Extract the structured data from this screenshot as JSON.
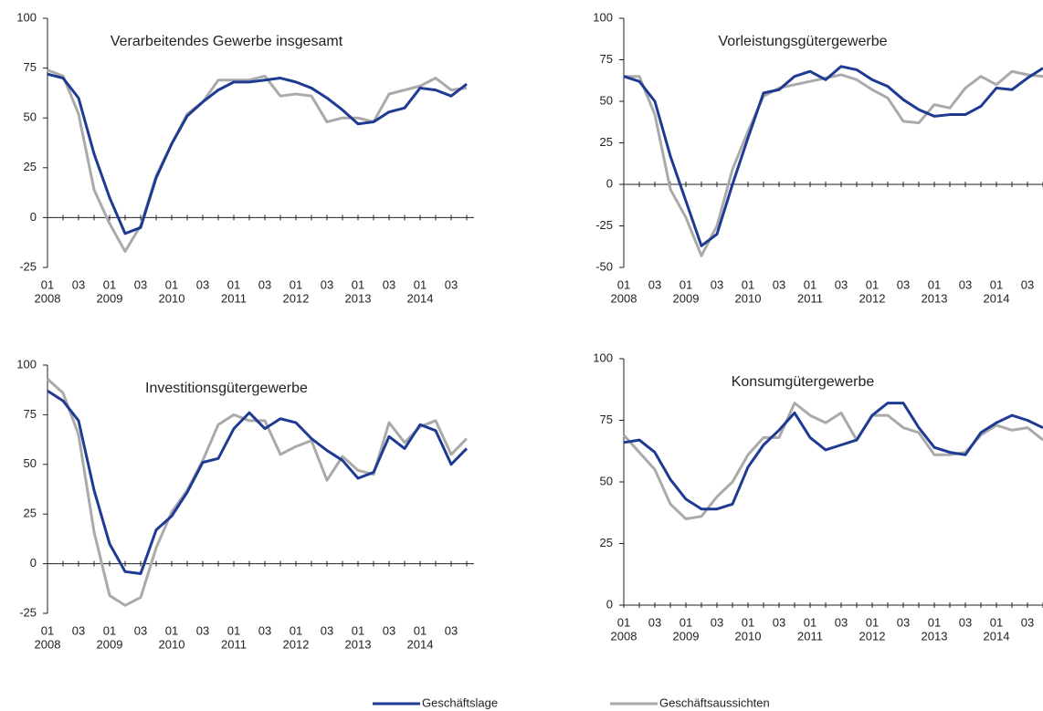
{
  "legend": [
    {
      "name": "Geschäftslage",
      "color": "#1f3a93"
    },
    {
      "name": "Geschäftsaussichten",
      "color": "#aaaaaa"
    }
  ],
  "chart_data": [
    {
      "type": "line",
      "title": "Verarbeitendes Gewerbe insgesamt",
      "categories": [
        "01",
        null,
        "03",
        null,
        "01",
        null,
        "03",
        null,
        "01",
        null,
        "03",
        null,
        "01",
        null,
        "03",
        null,
        "01",
        null,
        "03",
        null,
        "01",
        null,
        "03",
        null,
        "01",
        null,
        "03",
        null
      ],
      "years": [
        "2008",
        null,
        null,
        null,
        "2009",
        null,
        null,
        null,
        "2010",
        null,
        null,
        null,
        "2011",
        null,
        null,
        null,
        "2012",
        null,
        null,
        null,
        "2013",
        null,
        null,
        null,
        "2014",
        null,
        null,
        null
      ],
      "ylim": [
        -25,
        100
      ],
      "yticks": [
        -25,
        0,
        25,
        50,
        75,
        100
      ],
      "series": [
        {
          "values": [
            72,
            70,
            60,
            32,
            10,
            -8,
            -5,
            20,
            37,
            51,
            58,
            64,
            68,
            68,
            69,
            70,
            68,
            65,
            60,
            54,
            47,
            48,
            53,
            55,
            65,
            64,
            61,
            67
          ]
        },
        {
          "values": [
            74,
            71,
            52,
            14,
            -3,
            -17,
            -4,
            21,
            37,
            52,
            58,
            69,
            69,
            69,
            71,
            61,
            62,
            61,
            48,
            50,
            50,
            48,
            62,
            64,
            66,
            70,
            64,
            65
          ]
        }
      ]
    },
    {
      "type": "line",
      "title": "Vorleistungsgütergewerbe",
      "categories": [
        "01",
        null,
        "03",
        null,
        "01",
        null,
        "03",
        null,
        "01",
        null,
        "03",
        null,
        "01",
        null,
        "03",
        null,
        "01",
        null,
        "03",
        null,
        "01",
        null,
        "03",
        null,
        "01",
        null,
        "03",
        null
      ],
      "years": [
        "2008",
        null,
        null,
        null,
        "2009",
        null,
        null,
        null,
        "2010",
        null,
        null,
        null,
        "2011",
        null,
        null,
        null,
        "2012",
        null,
        null,
        null,
        "2013",
        null,
        null,
        null,
        "2014",
        null,
        null,
        null
      ],
      "ylim": [
        -50,
        100
      ],
      "yticks": [
        -50,
        -25,
        0,
        25,
        50,
        75,
        100
      ],
      "series": [
        {
          "values": [
            65,
            62,
            50,
            17,
            -10,
            -37,
            -30,
            0,
            28,
            55,
            57,
            65,
            68,
            63,
            71,
            69,
            63,
            59,
            51,
            45,
            41,
            42,
            42,
            47,
            58,
            57,
            64,
            70
          ]
        },
        {
          "values": [
            65,
            65,
            42,
            -3,
            -20,
            -43,
            -25,
            9,
            32,
            53,
            58,
            60,
            62,
            64,
            66,
            63,
            57,
            52,
            38,
            37,
            48,
            46,
            58,
            65,
            60,
            68,
            66,
            65
          ]
        }
      ]
    },
    {
      "type": "line",
      "title": "Investitionsgütergewerbe",
      "categories": [
        "01",
        null,
        "03",
        null,
        "01",
        null,
        "03",
        null,
        "01",
        null,
        "03",
        null,
        "01",
        null,
        "03",
        null,
        "01",
        null,
        "03",
        null,
        "01",
        null,
        "03",
        null,
        "01",
        null,
        "03",
        null
      ],
      "years": [
        "2008",
        null,
        null,
        null,
        "2009",
        null,
        null,
        null,
        "2010",
        null,
        null,
        null,
        "2011",
        null,
        null,
        null,
        "2012",
        null,
        null,
        null,
        "2013",
        null,
        null,
        null,
        "2014",
        null,
        null,
        null
      ],
      "ylim": [
        -25,
        100
      ],
      "yticks": [
        -25,
        0,
        25,
        50,
        75,
        100
      ],
      "series": [
        {
          "values": [
            87,
            82,
            72,
            37,
            10,
            -4,
            -5,
            17,
            24,
            36,
            51,
            53,
            68,
            76,
            68,
            73,
            71,
            63,
            57,
            52,
            43,
            46,
            64,
            58,
            70,
            67,
            50,
            58
          ]
        },
        {
          "values": [
            93,
            86,
            65,
            16,
            -16,
            -21,
            -17,
            8,
            26,
            37,
            52,
            70,
            75,
            72,
            72,
            55,
            59,
            62,
            42,
            54,
            47,
            45,
            71,
            61,
            69,
            72,
            55,
            63
          ]
        }
      ]
    },
    {
      "type": "line",
      "title": "Konsumgütergewerbe",
      "categories": [
        "01",
        null,
        "03",
        null,
        "01",
        null,
        "03",
        null,
        "01",
        null,
        "03",
        null,
        "01",
        null,
        "03",
        null,
        "01",
        null,
        "03",
        null,
        "01",
        null,
        "03",
        null,
        "01",
        null,
        "03",
        null
      ],
      "years": [
        "2008",
        null,
        null,
        null,
        "2009",
        null,
        null,
        null,
        "2010",
        null,
        null,
        null,
        "2011",
        null,
        null,
        null,
        "2012",
        null,
        null,
        null,
        "2013",
        null,
        null,
        null,
        "2014",
        null,
        null,
        null
      ],
      "ylim": [
        0,
        100
      ],
      "yticks": [
        0,
        25,
        50,
        75,
        100
      ],
      "series": [
        {
          "values": [
            66,
            67,
            62,
            51,
            43,
            39,
            39,
            41,
            56,
            65,
            71,
            78,
            68,
            63,
            65,
            67,
            77,
            82,
            82,
            72,
            64,
            62,
            61,
            70,
            74,
            77,
            75,
            72
          ]
        },
        {
          "values": [
            69,
            62,
            55,
            41,
            35,
            36,
            44,
            50,
            61,
            68,
            68,
            82,
            77,
            74,
            78,
            67,
            77,
            77,
            72,
            70,
            61,
            61,
            62,
            69,
            73,
            71,
            72,
            67
          ]
        }
      ]
    }
  ]
}
